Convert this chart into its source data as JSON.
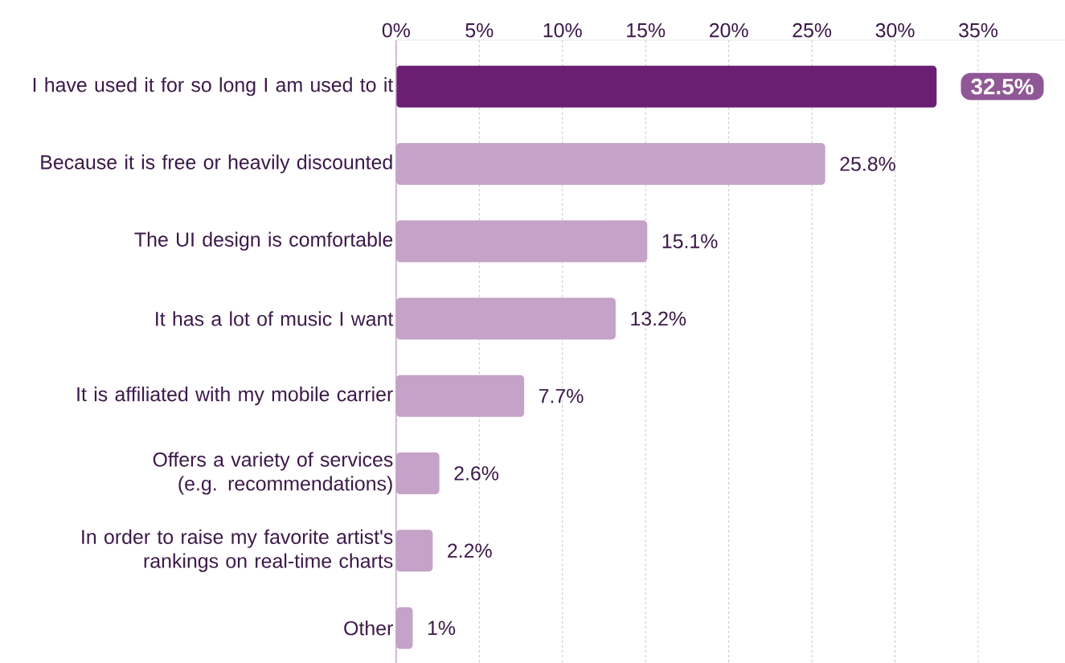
{
  "chart_data": {
    "type": "bar",
    "orientation": "horizontal",
    "categories": [
      "I have used it for so long I am used to it",
      "Because it is free or heavily discounted",
      "The UI design is comfortable",
      "It has a lot of music I want",
      "It is affiliated with my mobile carrier",
      "Offers a variety of services (e.g. recommendations)",
      "In order to raise my favorite artist's rankings on real-time charts",
      "Other"
    ],
    "values": [
      32.5,
      25.8,
      15.1,
      13.2,
      7.7,
      2.6,
      2.2,
      1
    ],
    "value_labels": [
      "32.5%",
      "25.8%",
      "15.1%",
      "13.2%",
      "7.7%",
      "2.6%",
      "2.2%",
      "1%"
    ],
    "colors": [
      "#6b1f73",
      "#c5a3c8",
      "#c5a3c8",
      "#c5a3c8",
      "#c5a3c8",
      "#c5a3c8",
      "#c5a3c8",
      "#c5a3c8"
    ],
    "xlim": [
      0,
      40.2
    ],
    "xticks": [
      {
        "value": 0,
        "label": "0%"
      },
      {
        "value": 5,
        "label": "5%"
      },
      {
        "value": 10,
        "label": "10%"
      },
      {
        "value": 15,
        "label": "15%"
      },
      {
        "value": 20,
        "label": "20%"
      },
      {
        "value": 25,
        "label": "25%"
      },
      {
        "value": 30,
        "label": "30%"
      },
      {
        "value": 35,
        "label": "35%"
      }
    ],
    "grid": "x"
  }
}
